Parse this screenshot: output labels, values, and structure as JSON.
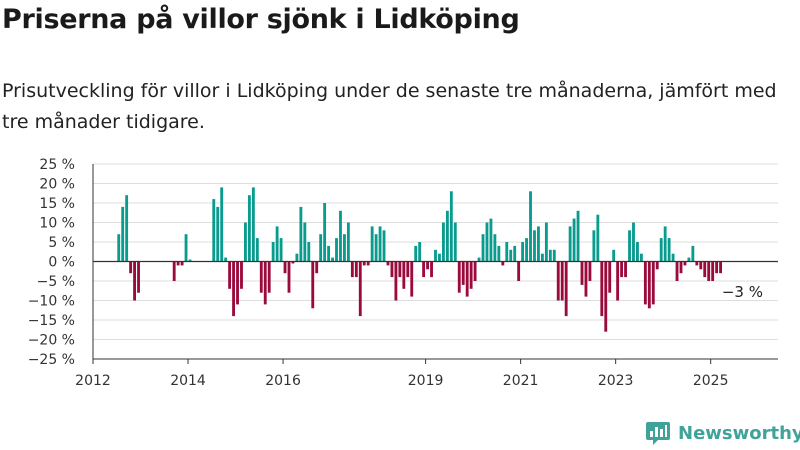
{
  "title": "Priserna på villor sjönk i Lidköping",
  "subtitle": "Prisutveckling för villor i Lidköping under de senaste tre månaderna, jämfört med tre månader tidigare.",
  "brand": {
    "name": "Newsworthy",
    "icon": "newsworthy-chart-logo-icon",
    "color": "#3fa39a"
  },
  "colors": {
    "positive": "#0a9b8f",
    "negative": "#9b0a3c",
    "grid": "#dddddd",
    "axis": "#333333"
  },
  "chart_data": {
    "type": "bar",
    "title": "Priserna på villor sjönk i Lidköping",
    "xlabel": "",
    "ylabel": "",
    "y_unit": "%",
    "ylim": [
      -25,
      25
    ],
    "y_ticks": [
      25,
      20,
      15,
      10,
      5,
      0,
      -5,
      -10,
      -15,
      -20,
      -25
    ],
    "y_tick_labels": [
      "25 %",
      "20 %",
      "15 %",
      "10 %",
      "5 %",
      "0 %",
      "−5 %",
      "−10 %",
      "−15 %",
      "−20 %",
      "−25 %"
    ],
    "xlim": [
      "2012-01",
      "2026-06"
    ],
    "x_ticks": [
      "2012-01",
      "2014-01",
      "2016-01",
      "2019-01",
      "2021-01",
      "2023-01",
      "2025-01"
    ],
    "x_tick_labels": [
      "2012",
      "2014",
      "2016",
      "2019",
      "2021",
      "2023",
      "2025"
    ],
    "grid": true,
    "legend": "none",
    "annotation": {
      "month": "2025-08",
      "value": -3,
      "label": "−3 %"
    },
    "series": [
      {
        "values": [
          [
            "2012-07",
            7
          ],
          [
            "2012-08",
            14
          ],
          [
            "2012-09",
            17
          ],
          [
            "2012-10",
            -3
          ],
          [
            "2012-11",
            -10
          ],
          [
            "2012-12",
            -8
          ],
          [
            "2013-09",
            -5
          ],
          [
            "2013-10",
            -1
          ],
          [
            "2013-11",
            -1
          ],
          [
            "2013-12",
            7
          ],
          [
            "2014-01",
            0.5
          ],
          [
            "2014-07",
            16
          ],
          [
            "2014-08",
            14
          ],
          [
            "2014-09",
            19
          ],
          [
            "2014-10",
            1
          ],
          [
            "2014-11",
            -7
          ],
          [
            "2014-12",
            -14
          ],
          [
            "2015-01",
            -11
          ],
          [
            "2015-02",
            -7
          ],
          [
            "2015-03",
            10
          ],
          [
            "2015-04",
            17
          ],
          [
            "2015-05",
            19
          ],
          [
            "2015-06",
            6
          ],
          [
            "2015-07",
            -8
          ],
          [
            "2015-08",
            -11
          ],
          [
            "2015-09",
            -8
          ],
          [
            "2015-10",
            5
          ],
          [
            "2015-11",
            9
          ],
          [
            "2015-12",
            6
          ],
          [
            "2016-01",
            -3
          ],
          [
            "2016-02",
            -8
          ],
          [
            "2016-03",
            -0.5
          ],
          [
            "2016-04",
            2
          ],
          [
            "2016-05",
            14
          ],
          [
            "2016-06",
            10
          ],
          [
            "2016-07",
            5
          ],
          [
            "2016-08",
            -12
          ],
          [
            "2016-09",
            -3
          ],
          [
            "2016-10",
            7
          ],
          [
            "2016-11",
            15
          ],
          [
            "2016-12",
            4
          ],
          [
            "2017-01",
            1
          ],
          [
            "2017-02",
            6
          ],
          [
            "2017-03",
            13
          ],
          [
            "2017-04",
            7
          ],
          [
            "2017-05",
            10
          ],
          [
            "2017-06",
            -4
          ],
          [
            "2017-07",
            -4
          ],
          [
            "2017-08",
            -14
          ],
          [
            "2017-09",
            -1
          ],
          [
            "2017-10",
            -1
          ],
          [
            "2017-11",
            9
          ],
          [
            "2017-12",
            7
          ],
          [
            "2018-01",
            9
          ],
          [
            "2018-02",
            8
          ],
          [
            "2018-03",
            -1
          ],
          [
            "2018-04",
            -4
          ],
          [
            "2018-05",
            -10
          ],
          [
            "2018-06",
            -4
          ],
          [
            "2018-07",
            -7
          ],
          [
            "2018-08",
            -4
          ],
          [
            "2018-09",
            -9
          ],
          [
            "2018-10",
            4
          ],
          [
            "2018-11",
            5
          ],
          [
            "2018-12",
            -4
          ],
          [
            "2019-01",
            -2
          ],
          [
            "2019-02",
            -4
          ],
          [
            "2019-03",
            3
          ],
          [
            "2019-04",
            2
          ],
          [
            "2019-05",
            10
          ],
          [
            "2019-06",
            13
          ],
          [
            "2019-07",
            18
          ],
          [
            "2019-08",
            10
          ],
          [
            "2019-09",
            -8
          ],
          [
            "2019-10",
            -6
          ],
          [
            "2019-11",
            -9
          ],
          [
            "2019-12",
            -7
          ],
          [
            "2020-01",
            -5
          ],
          [
            "2020-02",
            1
          ],
          [
            "2020-03",
            7
          ],
          [
            "2020-04",
            10
          ],
          [
            "2020-05",
            11
          ],
          [
            "2020-06",
            7
          ],
          [
            "2020-07",
            4
          ],
          [
            "2020-08",
            -1
          ],
          [
            "2020-09",
            5
          ],
          [
            "2020-10",
            3
          ],
          [
            "2020-11",
            4
          ],
          [
            "2020-12",
            -5
          ],
          [
            "2021-01",
            5
          ],
          [
            "2021-02",
            6
          ],
          [
            "2021-03",
            18
          ],
          [
            "2021-04",
            8
          ],
          [
            "2021-05",
            9
          ],
          [
            "2021-06",
            2
          ],
          [
            "2021-07",
            10
          ],
          [
            "2021-08",
            3
          ],
          [
            "2021-09",
            3
          ],
          [
            "2021-10",
            -10
          ],
          [
            "2021-11",
            -10
          ],
          [
            "2021-12",
            -14
          ],
          [
            "2022-01",
            9
          ],
          [
            "2022-02",
            11
          ],
          [
            "2022-03",
            13
          ],
          [
            "2022-04",
            -6
          ],
          [
            "2022-05",
            -9
          ],
          [
            "2022-06",
            -5
          ],
          [
            "2022-07",
            8
          ],
          [
            "2022-08",
            12
          ],
          [
            "2022-09",
            -14
          ],
          [
            "2022-10",
            -18
          ],
          [
            "2022-11",
            -8
          ],
          [
            "2022-12",
            3
          ],
          [
            "2023-01",
            -10
          ],
          [
            "2023-02",
            -4
          ],
          [
            "2023-03",
            -4
          ],
          [
            "2023-04",
            8
          ],
          [
            "2023-05",
            10
          ],
          [
            "2023-06",
            5
          ],
          [
            "2023-07",
            2
          ],
          [
            "2023-08",
            -11
          ],
          [
            "2023-09",
            -12
          ],
          [
            "2023-10",
            -11
          ],
          [
            "2023-11",
            -2
          ],
          [
            "2023-12",
            6
          ],
          [
            "2024-01",
            9
          ],
          [
            "2024-02",
            6
          ],
          [
            "2024-03",
            2
          ],
          [
            "2024-04",
            -5
          ],
          [
            "2024-05",
            -3
          ],
          [
            "2024-06",
            -1
          ],
          [
            "2024-07",
            1
          ],
          [
            "2024-08",
            4
          ],
          [
            "2024-09",
            -1
          ],
          [
            "2024-10",
            -2
          ],
          [
            "2024-11",
            -4
          ],
          [
            "2024-12",
            -5
          ],
          [
            "2025-01",
            -5
          ],
          [
            "2025-02",
            -3
          ],
          [
            "2025-03",
            -3
          ]
        ]
      }
    ]
  }
}
